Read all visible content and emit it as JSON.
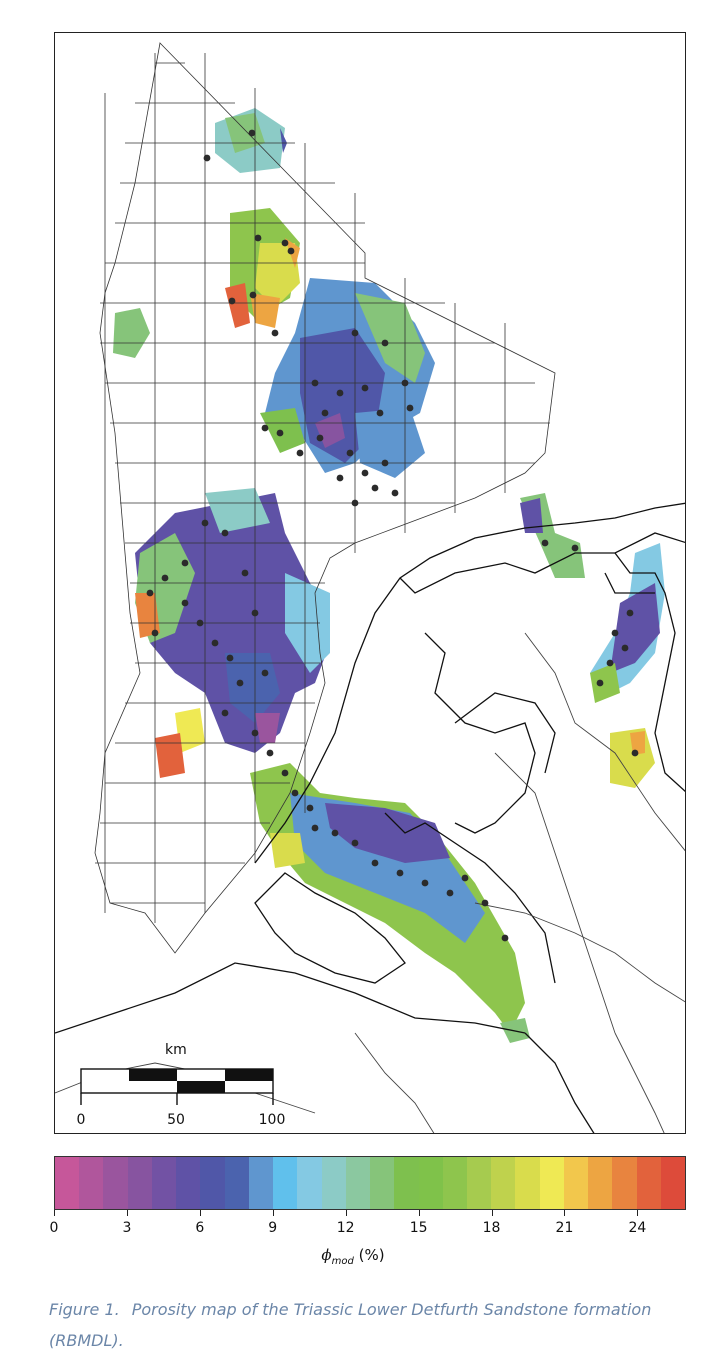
{
  "map": {
    "scalebar": {
      "unit_label": "km",
      "ticks": [
        "0",
        "50",
        "100"
      ]
    },
    "colors": {
      "outline": "#222222",
      "grid": "#333333",
      "well_marker": "#2b2b2b"
    }
  },
  "colorbar": {
    "tick_labels": [
      "0",
      "3",
      "6",
      "9",
      "12",
      "15",
      "18",
      "21",
      "24"
    ],
    "tick_values": [
      0,
      3,
      6,
      9,
      12,
      15,
      18,
      21,
      24
    ],
    "range": [
      0,
      26
    ],
    "axis_symbol": "ϕ",
    "axis_subscript": "mod",
    "axis_unit": "(%)",
    "colors": [
      "#c6579a",
      "#b0569c",
      "#9a559e",
      "#8754a0",
      "#7252a4",
      "#5f52a6",
      "#5057a8",
      "#4b63ae",
      "#5f96cf",
      "#60c0ec",
      "#84c9e3",
      "#8ccbc6",
      "#8bc8a0",
      "#86c47a",
      "#7ec04e",
      "#7fc24a",
      "#8ec54d",
      "#a6cb4f",
      "#bfd24d",
      "#d9dc4c",
      "#efe954",
      "#f2c74c",
      "#eda542",
      "#e8843f",
      "#e2623c",
      "#dd4b3a"
    ]
  },
  "caption": {
    "figure_label": "Figure 1.",
    "text": "Porosity map of the Triassic Lower Detfurth Sandstone formation (RBMDL)."
  }
}
